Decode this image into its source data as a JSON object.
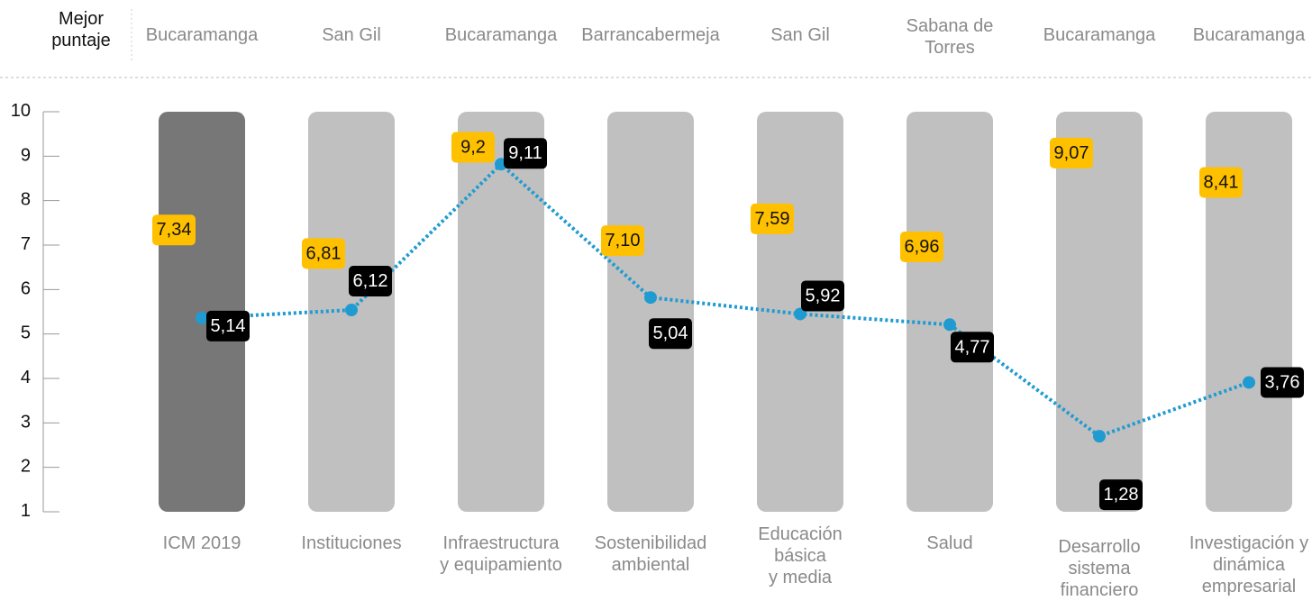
{
  "chart_data": {
    "type": "range_dot",
    "header_label": "Mejor\npuntaje",
    "best_places": [
      "Bucaramanga",
      "San Gil",
      "Bucaramanga",
      "Barrancabermeja",
      "San Gil",
      "Sabana de\nTorres",
      "Bucaramanga",
      "Bucaramanga"
    ],
    "categories": [
      "ICM 2019",
      "Instituciones",
      "Infraestructura\ny equipamiento",
      "Sostenibilidad\nambiental",
      "Educación\nbásica\ny media",
      "Salud",
      "Desarrollo\nsistema\nfinanciero",
      "Investigación y\ndinámica\nempresarial"
    ],
    "bar_colors": [
      "#777777",
      "#c0c0c0",
      "#c0c0c0",
      "#c0c0c0",
      "#c0c0c0",
      "#c0c0c0",
      "#c0c0c0",
      "#c0c0c0"
    ],
    "best_scores": {
      "color": "#ffc000",
      "values": [
        7.34,
        6.81,
        9.2,
        7.1,
        7.59,
        6.96,
        9.07,
        8.41
      ],
      "value_labels": [
        "7,34",
        "6,81",
        "9,2",
        "7,10",
        "7,59",
        "6,96",
        "9,07",
        "8,41"
      ]
    },
    "scores": {
      "color": "#000000",
      "values": [
        5.14,
        6.12,
        9.11,
        5.04,
        5.92,
        4.77,
        1.28,
        3.76
      ],
      "value_labels": [
        "5,14",
        "6,12",
        "9,11",
        "5,04",
        "5,92",
        "4,77",
        "1,28",
        "3,76"
      ]
    },
    "line": {
      "color": "#1f9bd1",
      "values": [
        5.36,
        5.54,
        8.82,
        5.82,
        5.45,
        5.21,
        2.7,
        3.91
      ]
    },
    "ylim": [
      1,
      10
    ],
    "yticks": [
      1,
      2,
      3,
      4,
      5,
      6,
      7,
      8,
      9,
      10
    ]
  }
}
